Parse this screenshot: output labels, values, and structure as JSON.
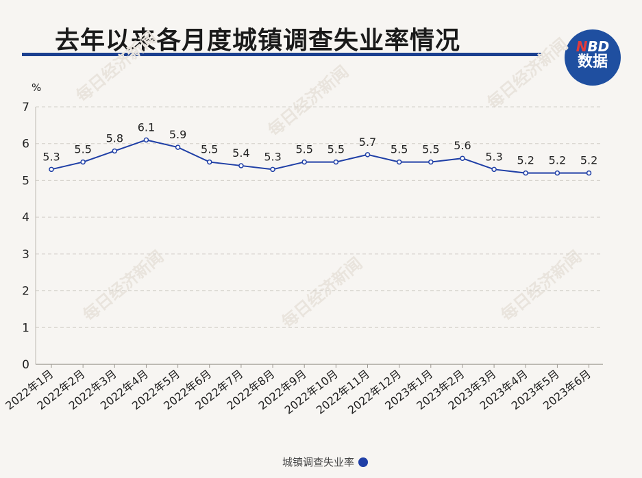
{
  "header": {
    "title": "去年以来各月度城镇调查失业率情况",
    "badge_line1_n": "N",
    "badge_line1_rest": "BD",
    "badge_line2": "数据",
    "accent_color": "#1b3f8f"
  },
  "watermark": "每日经济新闻",
  "chart_data": {
    "type": "line",
    "ylabel": "%",
    "ylim": [
      0,
      7
    ],
    "yticks": [
      0,
      1,
      2,
      3,
      4,
      5,
      6,
      7
    ],
    "grid": true,
    "legend_placement": "bottom-center",
    "categories": [
      "2022年1月",
      "2022年2月",
      "2022年3月",
      "2022年4月",
      "2022年5月",
      "2022年6月",
      "2022年7月",
      "2022年8月",
      "2022年9月",
      "2022年10月",
      "2022年11月",
      "2022年12月",
      "2023年1月",
      "2023年2月",
      "2023年3月",
      "2023年4月",
      "2023年5月",
      "2023年6月"
    ],
    "series": [
      {
        "name": "城镇调查失业率",
        "color": "#1f3fa6",
        "values": [
          5.3,
          5.5,
          5.8,
          6.1,
          5.9,
          5.5,
          5.4,
          5.3,
          5.5,
          5.5,
          5.7,
          5.5,
          5.5,
          5.6,
          5.3,
          5.2,
          5.2,
          5.2
        ]
      }
    ]
  }
}
